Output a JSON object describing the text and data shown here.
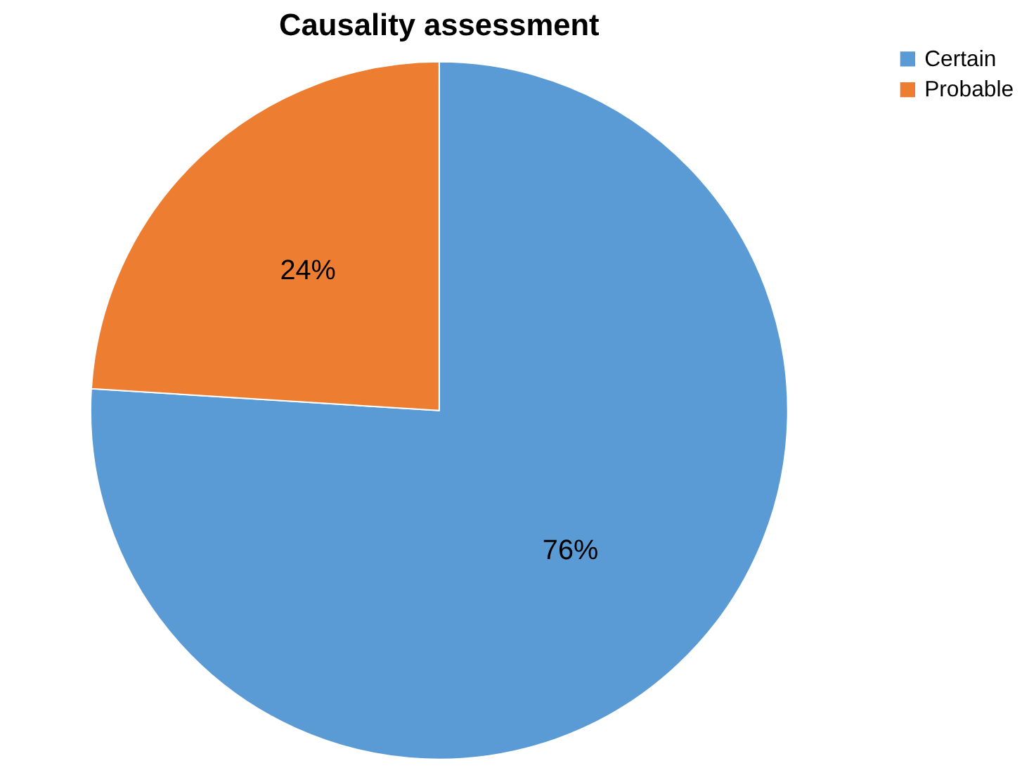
{
  "chart_data": {
    "type": "pie",
    "title": "Causality assessment",
    "categories": [
      "Certain",
      "Probable"
    ],
    "values": [
      76,
      24
    ],
    "colors": [
      "#5b9bd5",
      "#ed7d31"
    ],
    "value_labels": [
      "76%",
      "24%"
    ],
    "legend": "right"
  }
}
